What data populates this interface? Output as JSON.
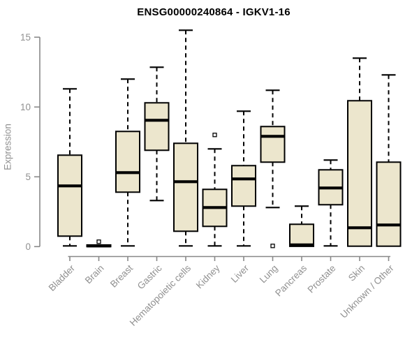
{
  "title": "ENSG00000240864 - IGKV1-16",
  "chart_data": {
    "type": "boxplot",
    "title": "ENSG00000240864 - IGKV1-16",
    "xlabel": "",
    "ylabel": "Expression",
    "ylim": [
      0,
      15
    ],
    "yticks": [
      0,
      5,
      10,
      15
    ],
    "grid": false,
    "legend": "none",
    "box_fill_color": "#ece6cd",
    "box_stroke_color": "#000000",
    "axis_color": "#888888",
    "label_color": "#909090",
    "outlier_fill_color": "#ffffff",
    "categories": [
      "Bladder",
      "Brain",
      "Breast",
      "Gastric",
      "Hematopoietic cells",
      "Kidney",
      "Liver",
      "Lung",
      "Pancreas",
      "Prostate",
      "Skin",
      "Unknown / Other"
    ],
    "series": [
      {
        "name": "Bladder",
        "whisker_low": 0.05,
        "q1": 0.75,
        "median": 4.35,
        "q3": 6.55,
        "whisker_high": 11.3,
        "outliers": []
      },
      {
        "name": "Brain",
        "whisker_low": 0.0,
        "q1": 0.0,
        "median": 0.05,
        "q3": 0.12,
        "whisker_high": 0.12,
        "outliers": [
          0.35
        ]
      },
      {
        "name": "Breast",
        "whisker_low": 0.05,
        "q1": 3.9,
        "median": 5.3,
        "q3": 8.25,
        "whisker_high": 12.0,
        "outliers": []
      },
      {
        "name": "Gastric",
        "whisker_low": 3.3,
        "q1": 6.9,
        "median": 9.05,
        "q3": 10.3,
        "whisker_high": 12.85,
        "outliers": []
      },
      {
        "name": "Hematopoietic cells",
        "whisker_low": 0.05,
        "q1": 1.1,
        "median": 4.65,
        "q3": 7.4,
        "whisker_high": 15.5,
        "outliers": []
      },
      {
        "name": "Kidney",
        "whisker_low": 0.05,
        "q1": 1.45,
        "median": 2.8,
        "q3": 4.1,
        "whisker_high": 7.0,
        "outliers": [
          8.0
        ]
      },
      {
        "name": "Liver",
        "whisker_low": 0.05,
        "q1": 2.9,
        "median": 4.85,
        "q3": 5.8,
        "whisker_high": 9.7,
        "outliers": []
      },
      {
        "name": "Lung",
        "whisker_low": 2.8,
        "q1": 6.05,
        "median": 7.9,
        "q3": 8.6,
        "whisker_high": 11.2,
        "outliers": [
          0.05
        ]
      },
      {
        "name": "Pancreas",
        "whisker_low": 0.0,
        "q1": 0.02,
        "median": 0.12,
        "q3": 1.6,
        "whisker_high": 2.9,
        "outliers": []
      },
      {
        "name": "Prostate",
        "whisker_low": 0.05,
        "q1": 3.0,
        "median": 4.2,
        "q3": 5.5,
        "whisker_high": 6.2,
        "outliers": []
      },
      {
        "name": "Skin",
        "whisker_low": 0.0,
        "q1": 0.03,
        "median": 1.35,
        "q3": 10.45,
        "whisker_high": 13.5,
        "outliers": []
      },
      {
        "name": "Unknown / Other",
        "whisker_low": 0.0,
        "q1": 0.03,
        "median": 1.55,
        "q3": 6.05,
        "whisker_high": 12.3,
        "outliers": []
      }
    ]
  }
}
